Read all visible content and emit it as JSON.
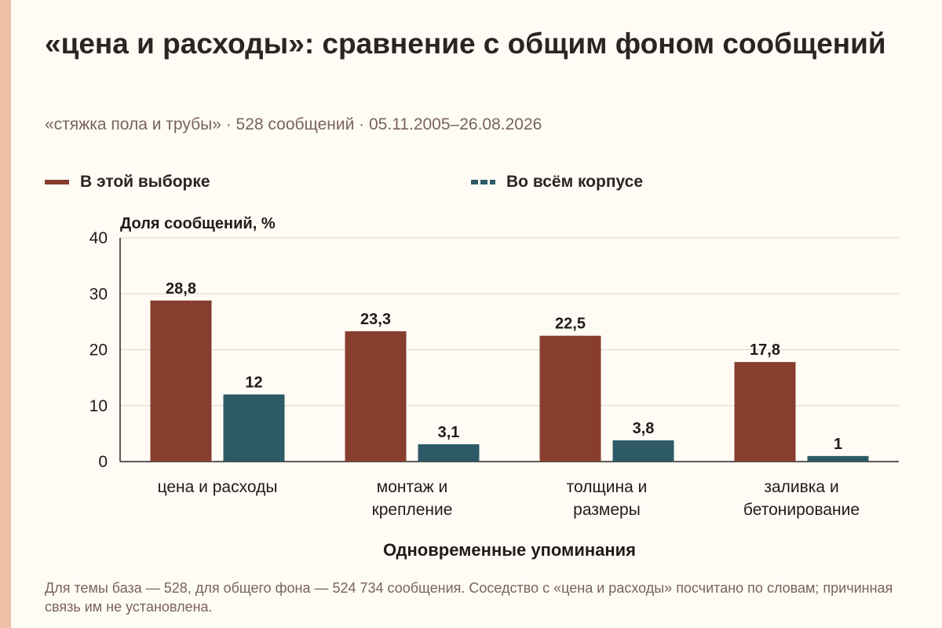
{
  "colors": {
    "accent_bar": "#ecbfa6",
    "background": "#fffcf5",
    "series_sample": "#873e2f",
    "series_corpus": "#2d5a66",
    "muted_text": "#7a6358"
  },
  "header": {
    "title": "«цена и расходы»: сравнение с общим фоном сообщений",
    "subtitle": "«стяжка пола и трубы» · 528 сообщений · 05.11.2005–26.08.2026"
  },
  "legend": {
    "sample_label": "В этой выборке",
    "corpus_label": "Во всём корпусе"
  },
  "chart_data": {
    "type": "bar",
    "title": "«цена и расходы»: сравнение с общим фоном сообщений",
    "ylabel": "Доля сообщений, %",
    "xlabel": "Одновременные упоминания",
    "ylim": [
      0,
      40
    ],
    "yticks": [
      0,
      10,
      20,
      30,
      40
    ],
    "grid": true,
    "legend_position": "top",
    "categories": [
      [
        "цена и расходы"
      ],
      [
        "монтаж и",
        "крепление"
      ],
      [
        "толщина и",
        "размеры"
      ],
      [
        "заливка и",
        "бетонирование"
      ]
    ],
    "series": [
      {
        "name": "В этой выборке",
        "color": "#873e2f",
        "values": [
          28.8,
          23.3,
          22.5,
          17.8
        ],
        "labels": [
          "28,8",
          "23,3",
          "22,5",
          "17,8"
        ]
      },
      {
        "name": "Во всём корпусе",
        "color": "#2d5a66",
        "values": [
          12,
          3.1,
          3.8,
          1
        ],
        "labels": [
          "12",
          "3,1",
          "3,8",
          "1"
        ]
      }
    ]
  },
  "footer": {
    "note": "Для темы база — 528, для общего фона — 524 734 сообщения. Соседство с «цена и расходы» посчитано по словам; причинная связь им не установлена."
  }
}
